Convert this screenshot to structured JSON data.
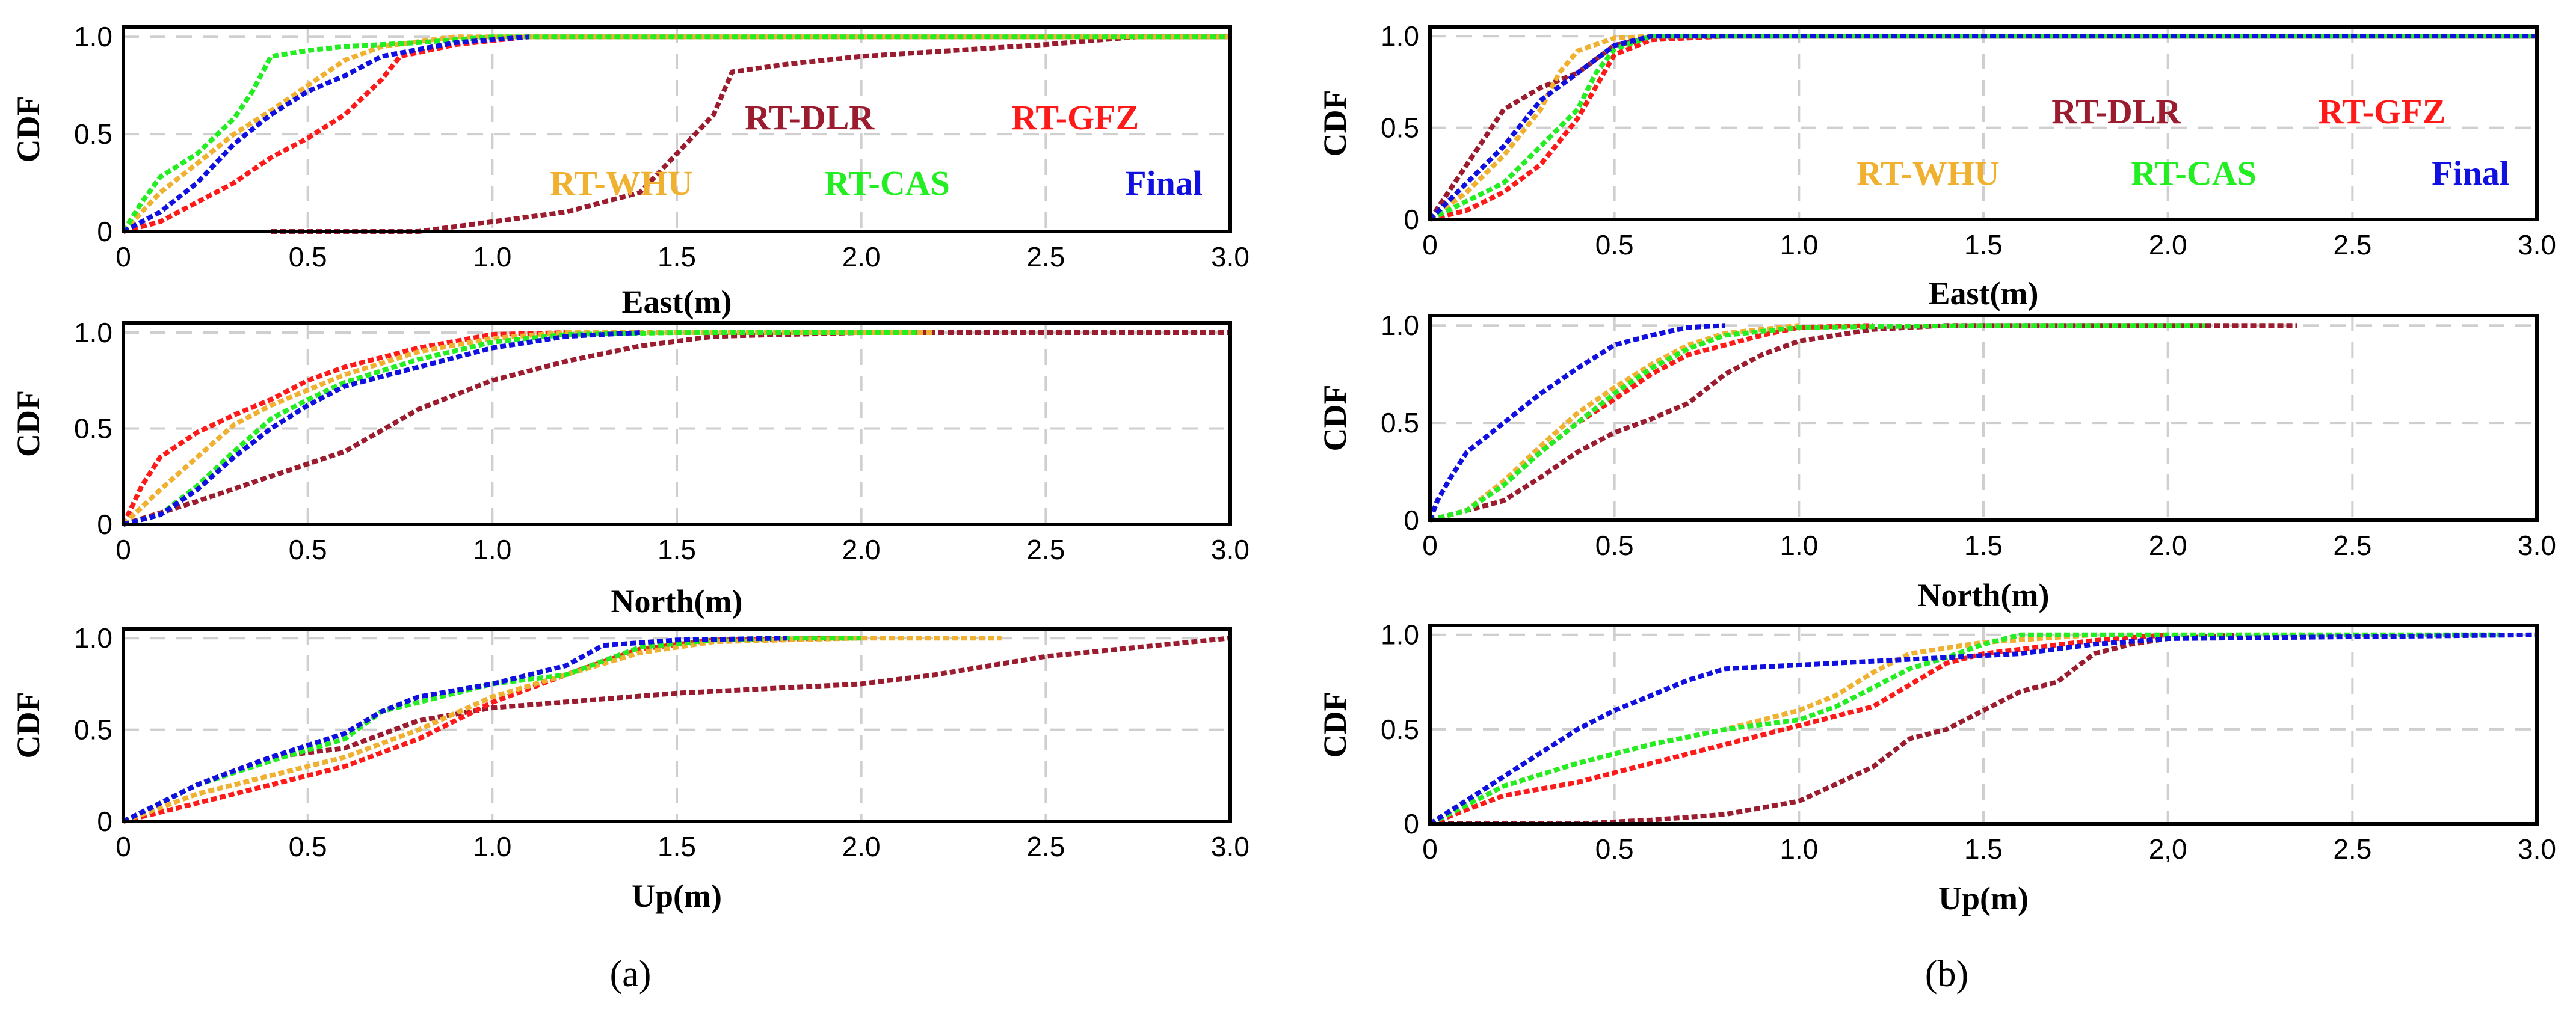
{
  "figure": {
    "label_a": "(a)",
    "label_b": "(b)"
  },
  "chart_data": [
    {
      "type": "line",
      "id": "a-east",
      "column": "a",
      "xlabel": "East(m)",
      "ylabel": "CDF",
      "xlim": [
        0,
        3.0
      ],
      "ylim": [
        0,
        1.05
      ],
      "xticks": [
        "0",
        "0.5",
        "1.0",
        "1.5",
        "2.0",
        "2.5",
        "3.0"
      ],
      "yticks": [
        "0",
        "0.5",
        "1.0"
      ],
      "legend": [
        {
          "name": "RT-DLR",
          "color": "#9b1c2e"
        },
        {
          "name": "RT-GFZ",
          "color": "#ff1a1a"
        },
        {
          "name": "RT-WHU",
          "color": "#f0b030"
        },
        {
          "name": "RT-CAS",
          "color": "#22ee22"
        },
        {
          "name": "Final",
          "color": "#1010e0"
        }
      ],
      "series": [
        {
          "name": "RT-DLR",
          "color": "#9b1c2e",
          "x": [
            0.4,
            0.8,
            1.0,
            1.2,
            1.4,
            1.5,
            1.6,
            1.65,
            1.8,
            2.0,
            2.5,
            2.75,
            3.0
          ],
          "y": [
            0.0,
            0.0,
            0.05,
            0.1,
            0.2,
            0.4,
            0.6,
            0.82,
            0.86,
            0.9,
            0.96,
            1.0,
            1.0
          ]
        },
        {
          "name": "RT-GFZ",
          "color": "#ff1a1a",
          "x": [
            0,
            0.1,
            0.2,
            0.3,
            0.4,
            0.5,
            0.6,
            0.7,
            0.75,
            0.9,
            1.1,
            3.0
          ],
          "y": [
            0,
            0.05,
            0.15,
            0.25,
            0.38,
            0.48,
            0.6,
            0.78,
            0.9,
            0.96,
            1.0,
            1.0
          ]
        },
        {
          "name": "RT-WHU",
          "color": "#f0b030",
          "x": [
            0,
            0.1,
            0.2,
            0.3,
            0.4,
            0.5,
            0.6,
            0.7,
            0.9,
            3.0
          ],
          "y": [
            0,
            0.2,
            0.35,
            0.5,
            0.62,
            0.75,
            0.88,
            0.95,
            1.0,
            1.0
          ]
        },
        {
          "name": "RT-CAS",
          "color": "#22ee22",
          "x": [
            0,
            0.05,
            0.1,
            0.2,
            0.3,
            0.35,
            0.4,
            0.5,
            0.6,
            0.8,
            1.0,
            3.0
          ],
          "y": [
            0,
            0.15,
            0.28,
            0.4,
            0.58,
            0.72,
            0.9,
            0.93,
            0.95,
            0.97,
            1.0,
            1.0
          ]
        },
        {
          "name": "Final",
          "color": "#1010e0",
          "x": [
            0,
            0.1,
            0.2,
            0.3,
            0.4,
            0.5,
            0.6,
            0.7,
            0.9,
            1.1
          ],
          "y": [
            0,
            0.1,
            0.25,
            0.45,
            0.6,
            0.72,
            0.8,
            0.9,
            0.97,
            1.0
          ]
        }
      ]
    },
    {
      "type": "line",
      "id": "a-north",
      "column": "a",
      "xlabel": "North(m)",
      "ylabel": "CDF",
      "xlim": [
        0,
        3.0
      ],
      "ylim": [
        0,
        1.05
      ],
      "xticks": [
        "0",
        "0.5",
        "1.0",
        "1.5",
        "2.0",
        "2.5",
        "3.0"
      ],
      "yticks": [
        "0",
        "0.5",
        "1.0"
      ],
      "legend": [],
      "series": [
        {
          "name": "RT-DLR",
          "color": "#9b1c2e",
          "x": [
            0,
            0.2,
            0.4,
            0.6,
            0.8,
            1.0,
            1.2,
            1.4,
            1.6,
            2.0,
            3.0
          ],
          "y": [
            0,
            0.12,
            0.25,
            0.38,
            0.6,
            0.75,
            0.85,
            0.93,
            0.98,
            1.0,
            1.0
          ]
        },
        {
          "name": "RT-GFZ",
          "color": "#ff1a1a",
          "x": [
            0,
            0.05,
            0.1,
            0.2,
            0.3,
            0.4,
            0.5,
            0.6,
            0.8,
            1.0,
            1.2
          ],
          "y": [
            0,
            0.2,
            0.35,
            0.48,
            0.57,
            0.65,
            0.75,
            0.82,
            0.92,
            0.99,
            1.0
          ]
        },
        {
          "name": "RT-WHU",
          "color": "#f0b030",
          "x": [
            0,
            0.1,
            0.2,
            0.3,
            0.4,
            0.5,
            0.6,
            0.8,
            1.0,
            1.2,
            2.2
          ],
          "y": [
            0,
            0.18,
            0.35,
            0.52,
            0.62,
            0.7,
            0.78,
            0.9,
            0.97,
            1.0,
            1.0
          ]
        },
        {
          "name": "RT-CAS",
          "color": "#22ee22",
          "x": [
            0,
            0.1,
            0.2,
            0.3,
            0.4,
            0.5,
            0.6,
            0.8,
            1.0,
            1.2,
            1.5,
            2.15
          ],
          "y": [
            0,
            0.05,
            0.2,
            0.38,
            0.55,
            0.65,
            0.74,
            0.86,
            0.95,
            0.99,
            1.0,
            1.0
          ]
        },
        {
          "name": "Final",
          "color": "#1010e0",
          "x": [
            0,
            0.1,
            0.2,
            0.3,
            0.4,
            0.5,
            0.6,
            0.8,
            1.0,
            1.2,
            1.4
          ],
          "y": [
            0,
            0.05,
            0.18,
            0.35,
            0.5,
            0.62,
            0.72,
            0.82,
            0.92,
            0.98,
            1.0
          ]
        }
      ]
    },
    {
      "type": "line",
      "id": "a-up",
      "column": "a",
      "xlabel": "Up(m)",
      "ylabel": "CDF",
      "xlim": [
        0,
        3.0
      ],
      "ylim": [
        0,
        1.05
      ],
      "xticks": [
        "0",
        "0.5",
        "1.0",
        "1.5",
        "2.0",
        "2.5",
        "3.0"
      ],
      "yticks": [
        "0",
        "0.5",
        "1.0"
      ],
      "legend": [],
      "series": [
        {
          "name": "RT-DLR",
          "color": "#9b1c2e",
          "x": [
            0,
            0.2,
            0.4,
            0.6,
            0.8,
            1.0,
            1.5,
            2.0,
            2.2,
            2.5,
            3.0
          ],
          "y": [
            0,
            0.2,
            0.35,
            0.4,
            0.55,
            0.62,
            0.7,
            0.75,
            0.8,
            0.9,
            1.0
          ]
        },
        {
          "name": "RT-GFZ",
          "color": "#ff1a1a",
          "x": [
            0,
            0.2,
            0.4,
            0.6,
            0.8,
            1.0,
            1.2,
            1.4,
            1.6,
            2.0
          ],
          "y": [
            0,
            0.1,
            0.2,
            0.3,
            0.45,
            0.65,
            0.8,
            0.94,
            0.99,
            1.0
          ]
        },
        {
          "name": "RT-WHU",
          "color": "#f0b030",
          "x": [
            0,
            0.2,
            0.4,
            0.6,
            0.8,
            1.0,
            1.2,
            1.4,
            1.6,
            2.0,
            2.38
          ],
          "y": [
            0,
            0.15,
            0.25,
            0.35,
            0.5,
            0.68,
            0.8,
            0.92,
            0.98,
            1.0,
            1.0
          ]
        },
        {
          "name": "RT-CAS",
          "color": "#22ee22",
          "x": [
            0,
            0.2,
            0.4,
            0.6,
            0.7,
            0.8,
            1.0,
            1.2,
            1.4,
            1.6,
            1.8,
            2.0
          ],
          "y": [
            0,
            0.2,
            0.33,
            0.45,
            0.6,
            0.65,
            0.75,
            0.8,
            0.95,
            0.99,
            1.0,
            1.0
          ]
        },
        {
          "name": "Final",
          "color": "#1010e0",
          "x": [
            0,
            0.2,
            0.4,
            0.6,
            0.7,
            0.8,
            1.0,
            1.2,
            1.3,
            1.5,
            1.8
          ],
          "y": [
            0,
            0.2,
            0.35,
            0.48,
            0.6,
            0.68,
            0.75,
            0.85,
            0.96,
            0.99,
            1.0
          ]
        }
      ]
    },
    {
      "type": "line",
      "id": "b-east",
      "column": "b",
      "xlabel": "East(m)",
      "ylabel": "CDF",
      "xlim": [
        0,
        3.0
      ],
      "ylim": [
        0,
        1.05
      ],
      "xticks": [
        "0",
        "0.5",
        "1.0",
        "1.5",
        "2.0",
        "2.5",
        "3.0"
      ],
      "yticks": [
        "0",
        "0.5",
        "1.0"
      ],
      "legend": [
        {
          "name": "RT-DLR",
          "color": "#9b1c2e"
        },
        {
          "name": "RT-GFZ",
          "color": "#ff1a1a"
        },
        {
          "name": "RT-WHU",
          "color": "#f0b030"
        },
        {
          "name": "RT-CAS",
          "color": "#22ee22"
        },
        {
          "name": "Final",
          "color": "#1010e0"
        }
      ],
      "series": [
        {
          "name": "RT-DLR",
          "color": "#9b1c2e",
          "x": [
            0,
            0.05,
            0.1,
            0.15,
            0.2,
            0.3,
            0.4,
            0.5,
            0.6,
            0.8,
            3.0
          ],
          "y": [
            0,
            0.15,
            0.3,
            0.45,
            0.6,
            0.72,
            0.8,
            0.95,
            0.99,
            1.0,
            1.0
          ]
        },
        {
          "name": "RT-GFZ",
          "color": "#ff1a1a",
          "x": [
            0,
            0.1,
            0.2,
            0.3,
            0.4,
            0.5,
            0.6,
            0.8,
            3.0
          ],
          "y": [
            0,
            0.05,
            0.15,
            0.3,
            0.55,
            0.9,
            0.98,
            1.0,
            1.0
          ]
        },
        {
          "name": "RT-WHU",
          "color": "#f0b030",
          "x": [
            0,
            0.1,
            0.2,
            0.3,
            0.35,
            0.4,
            0.5,
            0.6,
            3.0
          ],
          "y": [
            0,
            0.15,
            0.35,
            0.6,
            0.8,
            0.92,
            0.99,
            1.0,
            1.0
          ]
        },
        {
          "name": "RT-CAS",
          "color": "#22ee22",
          "x": [
            0,
            0.1,
            0.2,
            0.3,
            0.4,
            0.45,
            0.5,
            0.6,
            3.0
          ],
          "y": [
            0,
            0.1,
            0.2,
            0.4,
            0.6,
            0.8,
            0.93,
            1.0,
            1.0
          ]
        },
        {
          "name": "Final",
          "color": "#1010e0",
          "x": [
            0,
            0.1,
            0.2,
            0.3,
            0.4,
            0.5,
            0.6,
            3.0
          ],
          "y": [
            0,
            0.2,
            0.4,
            0.65,
            0.8,
            0.95,
            1.0,
            1.0
          ]
        }
      ]
    },
    {
      "type": "line",
      "id": "b-north",
      "column": "b",
      "xlabel": "North(m)",
      "ylabel": "CDF",
      "xlim": [
        0,
        3.0
      ],
      "ylim": [
        0,
        1.05
      ],
      "xticks": [
        "0",
        "0.5",
        "1.0",
        "1.5",
        "2.0",
        "2.5",
        "3.0"
      ],
      "yticks": [
        "0",
        "0.5",
        "1.0"
      ],
      "legend": [],
      "series": [
        {
          "name": "RT-DLR",
          "color": "#9b1c2e",
          "x": [
            0,
            0.2,
            0.3,
            0.4,
            0.5,
            0.6,
            0.7,
            0.8,
            0.9,
            1.0,
            1.2,
            1.4,
            2.35
          ],
          "y": [
            0,
            0.1,
            0.22,
            0.35,
            0.45,
            0.52,
            0.6,
            0.75,
            0.85,
            0.92,
            0.98,
            1.0,
            1.0
          ]
        },
        {
          "name": "RT-GFZ",
          "color": "#ff1a1a",
          "x": [
            0,
            0.1,
            0.2,
            0.3,
            0.4,
            0.5,
            0.6,
            0.7,
            0.8,
            0.9,
            1.0,
            1.2
          ],
          "y": [
            0,
            0.05,
            0.2,
            0.35,
            0.5,
            0.62,
            0.75,
            0.85,
            0.9,
            0.95,
            0.99,
            1.0
          ]
        },
        {
          "name": "RT-WHU",
          "color": "#f0b030",
          "x": [
            0,
            0.1,
            0.2,
            0.3,
            0.4,
            0.5,
            0.6,
            0.7,
            0.8,
            1.0
          ],
          "y": [
            0,
            0.05,
            0.2,
            0.38,
            0.55,
            0.68,
            0.8,
            0.9,
            0.96,
            1.0
          ]
        },
        {
          "name": "RT-CAS",
          "color": "#22ee22",
          "x": [
            0,
            0.1,
            0.2,
            0.3,
            0.4,
            0.5,
            0.6,
            0.7,
            0.8,
            1.0,
            1.5,
            2.1
          ],
          "y": [
            0,
            0.05,
            0.18,
            0.35,
            0.5,
            0.65,
            0.78,
            0.88,
            0.95,
            0.99,
            1.0,
            1.0
          ]
        },
        {
          "name": "Final",
          "color": "#1010e0",
          "x": [
            0,
            0.02,
            0.05,
            0.1,
            0.2,
            0.3,
            0.4,
            0.5,
            0.6,
            0.7,
            0.8
          ],
          "y": [
            0,
            0.1,
            0.2,
            0.35,
            0.5,
            0.65,
            0.78,
            0.9,
            0.95,
            0.99,
            1.0
          ]
        }
      ]
    },
    {
      "type": "line",
      "id": "b-up",
      "column": "b",
      "xlabel": "Up(m)",
      "ylabel": "CDF",
      "xlim": [
        0,
        3.0
      ],
      "ylim": [
        0,
        1.05
      ],
      "xticks": [
        "0",
        "0.5",
        "1.0",
        "1.5",
        "2,0",
        "2.5",
        "3.0"
      ],
      "yticks": [
        "0",
        "0.5",
        "1.0"
      ],
      "legend": [],
      "series": [
        {
          "name": "RT-DLR",
          "color": "#9b1c2e",
          "x": [
            0,
            0.4,
            0.6,
            0.8,
            1.0,
            1.2,
            1.3,
            1.4,
            1.5,
            1.6,
            1.7,
            1.8,
            1.9,
            2.0,
            2.2
          ],
          "y": [
            0,
            0.0,
            0.02,
            0.05,
            0.12,
            0.3,
            0.45,
            0.5,
            0.6,
            0.7,
            0.75,
            0.9,
            0.95,
            0.98,
            1.0
          ]
        },
        {
          "name": "RT-GFZ",
          "color": "#ff1a1a",
          "x": [
            0,
            0.2,
            0.4,
            0.6,
            0.8,
            1.0,
            1.2,
            1.4,
            1.5,
            1.8,
            2.0
          ],
          "y": [
            0,
            0.15,
            0.22,
            0.32,
            0.42,
            0.52,
            0.62,
            0.85,
            0.9,
            0.97,
            1.0
          ]
        },
        {
          "name": "RT-WHU",
          "color": "#f0b030",
          "x": [
            0,
            0.2,
            0.4,
            0.6,
            0.8,
            1.0,
            1.1,
            1.2,
            1.3,
            1.5,
            1.8
          ],
          "y": [
            0,
            0.2,
            0.32,
            0.42,
            0.5,
            0.6,
            0.68,
            0.8,
            0.9,
            0.96,
            1.0
          ]
        },
        {
          "name": "RT-CAS",
          "color": "#22ee22",
          "x": [
            0,
            0.2,
            0.4,
            0.6,
            0.8,
            1.0,
            1.1,
            1.2,
            1.3,
            1.4,
            1.5,
            1.6,
            2.0,
            2.2,
            2.9
          ],
          "y": [
            0,
            0.2,
            0.32,
            0.42,
            0.5,
            0.55,
            0.62,
            0.72,
            0.82,
            0.88,
            0.95,
            1.0,
            1.0,
            1.0,
            1.0
          ]
        },
        {
          "name": "Final",
          "color": "#1010e0",
          "x": [
            0,
            0.2,
            0.4,
            0.5,
            0.6,
            0.7,
            0.8,
            1.0,
            1.2,
            1.4,
            1.6,
            1.8,
            2.0,
            2.5,
            3.0
          ],
          "y": [
            0,
            0.25,
            0.5,
            0.6,
            0.68,
            0.76,
            0.82,
            0.84,
            0.86,
            0.88,
            0.9,
            0.95,
            0.98,
            0.99,
            1.0
          ]
        }
      ]
    }
  ]
}
